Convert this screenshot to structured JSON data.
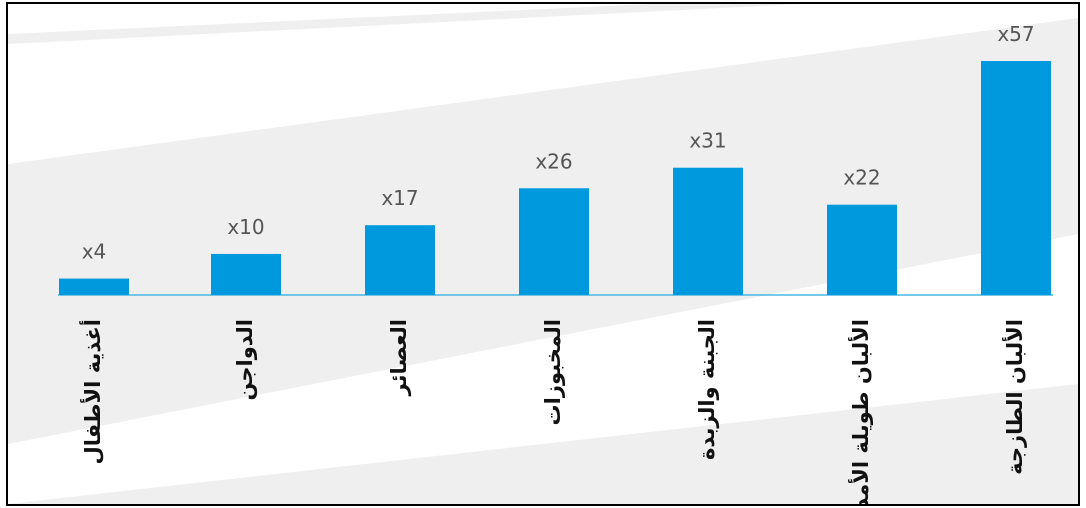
{
  "chart_data": {
    "type": "bar",
    "categories": [
      "أغذية الأطفال",
      "الدواجن",
      "العصائر",
      "المخبوزات",
      "الجبنة والزبدة",
      "الألبان طويلة الأمد",
      "الألبان الطازجة"
    ],
    "values": [
      4,
      10,
      17,
      26,
      31,
      22,
      57
    ],
    "value_labels": [
      "x4",
      "x10",
      "x17",
      "x26",
      "x31",
      "x22",
      "x57"
    ],
    "title": "",
    "xlabel": "",
    "ylabel": "",
    "ylim": [
      0,
      57
    ],
    "grid": false,
    "legend": "none"
  },
  "colors": {
    "bar": "#0099dd",
    "baseline": "#4ab7e6",
    "band": "#efefef",
    "value_text": "#555555",
    "category_text": "#111111",
    "frame": "#000000"
  }
}
